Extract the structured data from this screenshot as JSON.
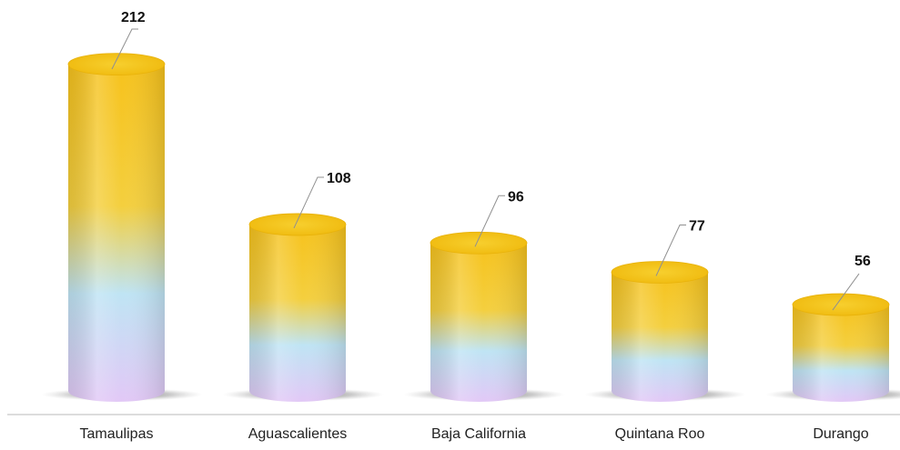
{
  "chart_data": {
    "type": "bar",
    "style": "3d-cylinder",
    "categories": [
      "Tamaulipas",
      "Aguascalientes",
      "Baja California",
      "Quintana Roo",
      "Durango"
    ],
    "values": [
      212,
      108,
      96,
      77,
      56
    ],
    "title": "",
    "xlabel": "",
    "ylabel": "",
    "ylim": [
      0,
      225
    ],
    "grid": false,
    "legend": "none",
    "data_labels": [
      "212",
      "108",
      "96",
      "77",
      "56"
    ],
    "colors": {
      "top": "#f6c21c",
      "upper": "#f4cf3e",
      "middle": "#bfe4f4",
      "lower": "#e2c8f6",
      "cap": "#f2c011",
      "shadow": "#7a7a7a",
      "baseline": "#d0d0d0",
      "leader": "#909090"
    }
  }
}
